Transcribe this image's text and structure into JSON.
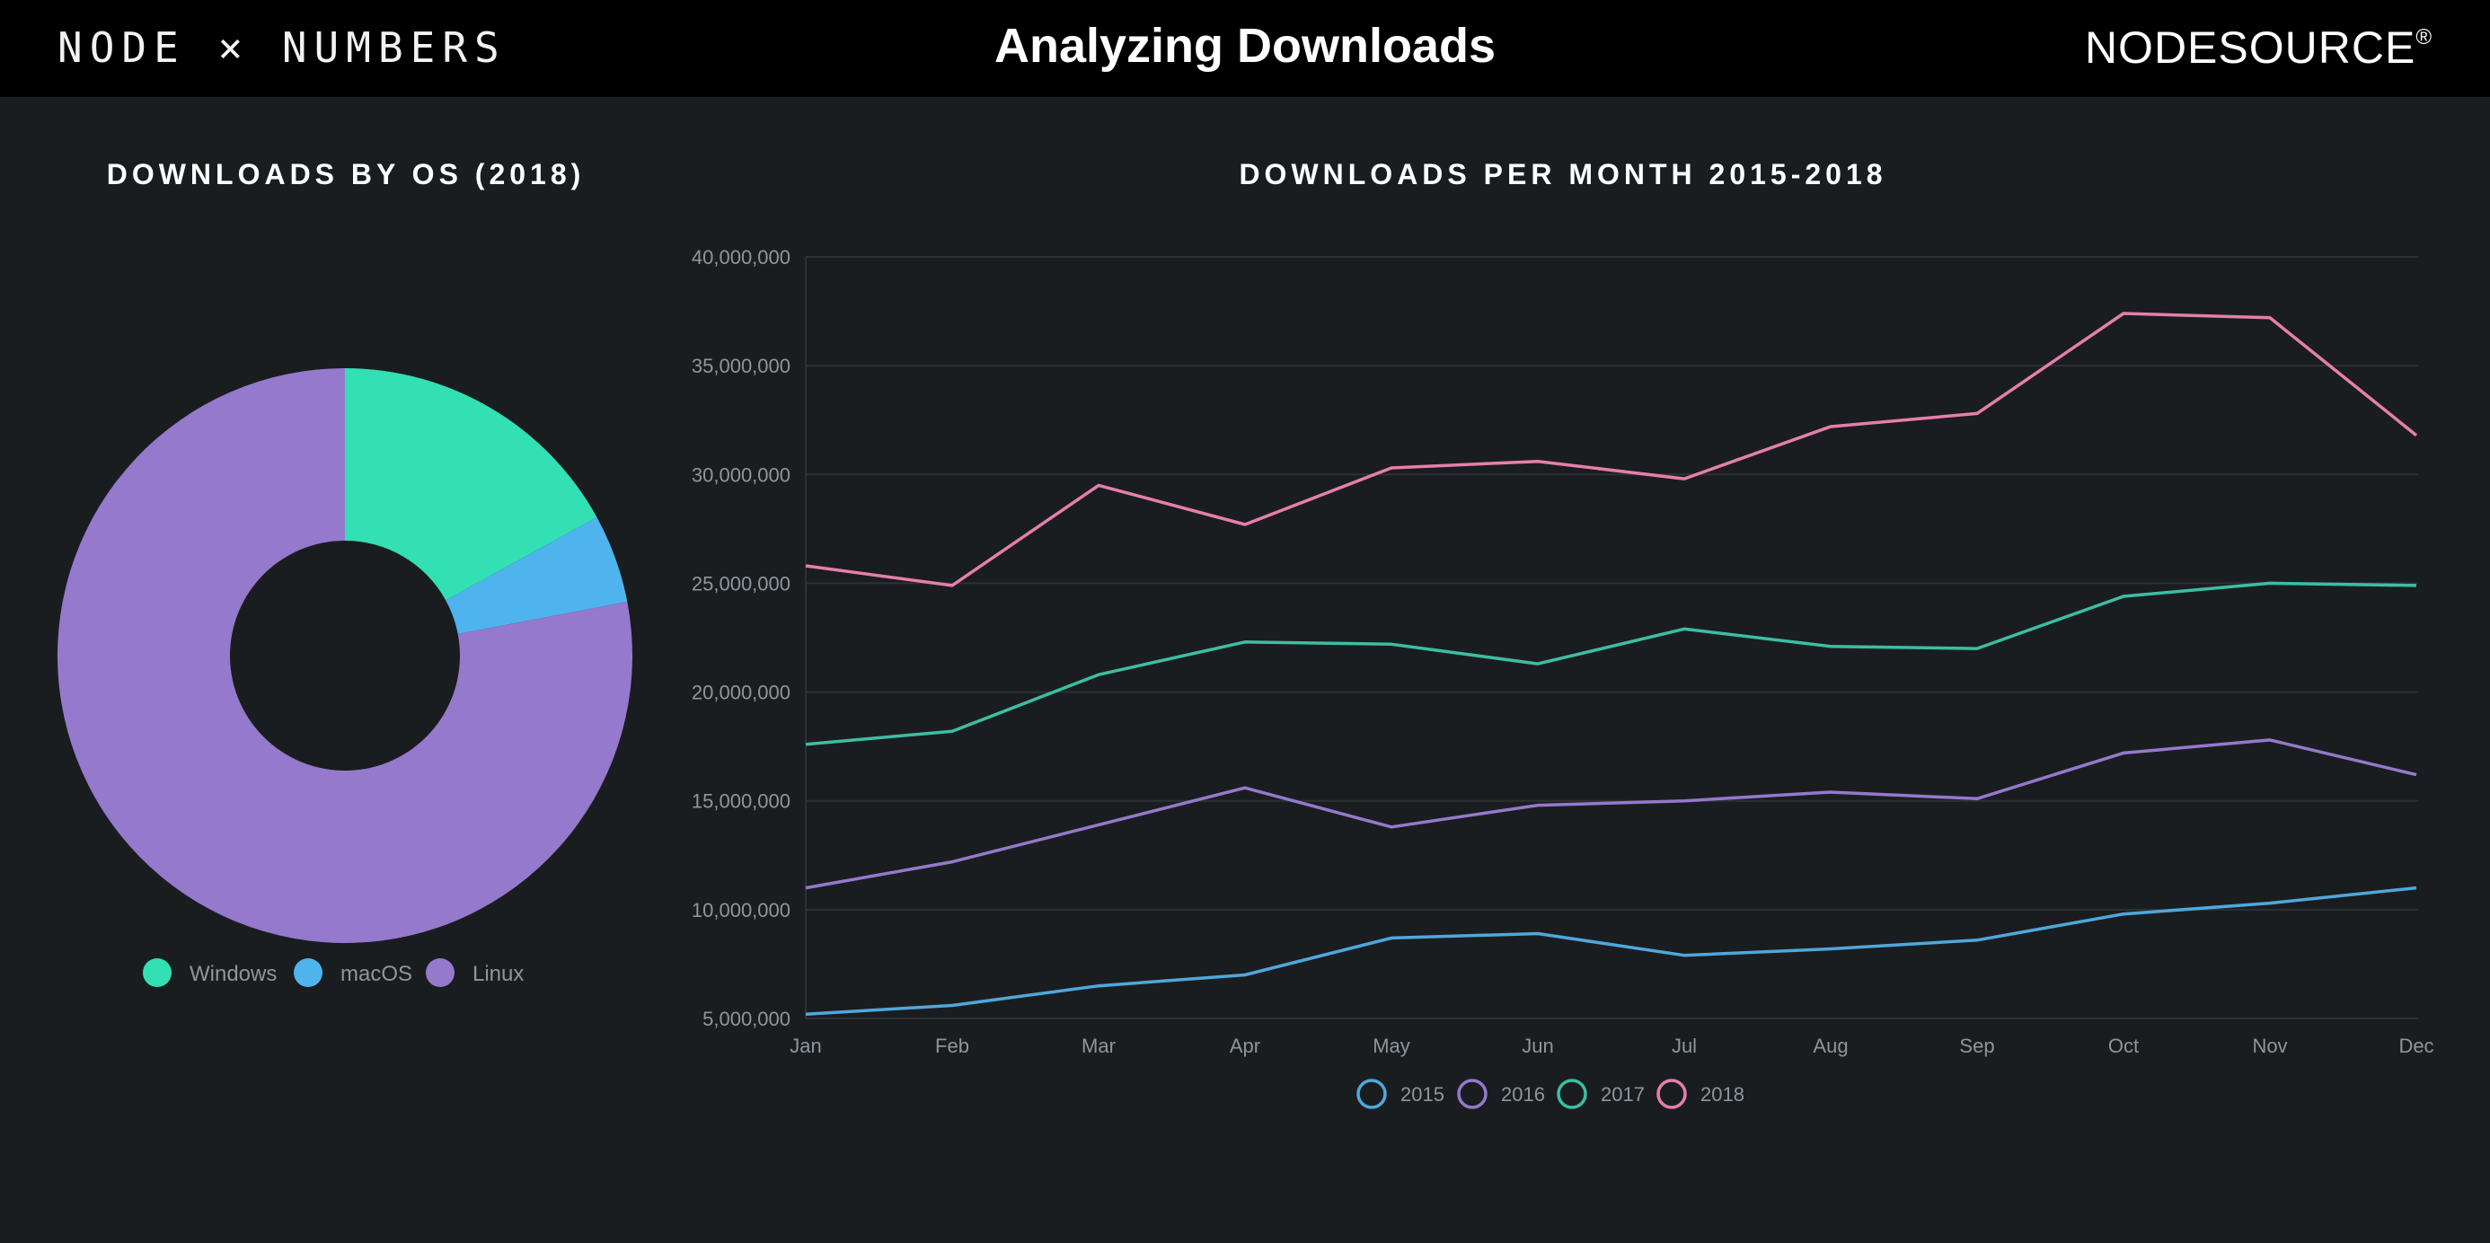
{
  "header": {
    "brand_left": "NODE × NUMBERS",
    "title": "Analyzing Downloads",
    "brand_right": "NODESOURCE",
    "brand_right_mark": "®"
  },
  "colors": {
    "background": "#1a1d1f",
    "header": "#000000",
    "windows": "#33e0b3",
    "macos": "#4fb3ee",
    "linux": "#9479cc",
    "s2015": "#4fa8dc",
    "s2016": "#9479cc",
    "s2017": "#3dbea3",
    "s2018": "#e57fab"
  },
  "chart_data": [
    {
      "type": "pie",
      "title": "DOWNLOADS BY OS (2018)",
      "categories": [
        "Windows",
        "macOS",
        "Linux"
      ],
      "values": [
        17,
        5,
        78
      ],
      "legend": [
        "Windows",
        "macOS",
        "Linux"
      ],
      "legend_position": "bottom"
    },
    {
      "type": "line",
      "title": "DOWNLOADS PER MONTH 2015-2018",
      "x": [
        "Jan",
        "Feb",
        "Mar",
        "Apr",
        "May",
        "Jun",
        "Jul",
        "Aug",
        "Sep",
        "Oct",
        "Nov",
        "Dec"
      ],
      "ylim": [
        5000000,
        40000000
      ],
      "yticks": [
        5000000,
        10000000,
        15000000,
        20000000,
        25000000,
        30000000,
        35000000,
        40000000
      ],
      "ytick_labels": [
        "5,000,000",
        "10,000,000",
        "15,000,000",
        "20,000,000",
        "25,000,000",
        "30,000,000",
        "35,000,000",
        "40,000,000"
      ],
      "grid": true,
      "legend_position": "bottom",
      "series": [
        {
          "name": "2015",
          "values": [
            5200000,
            5600000,
            6500000,
            7000000,
            8700000,
            8900000,
            7900000,
            8200000,
            8600000,
            9800000,
            10300000,
            11000000
          ]
        },
        {
          "name": "2016",
          "values": [
            11000000,
            12200000,
            13900000,
            15600000,
            13800000,
            14800000,
            15000000,
            15400000,
            15100000,
            17200000,
            17800000,
            16200000
          ]
        },
        {
          "name": "2017",
          "values": [
            17600000,
            18200000,
            20800000,
            22300000,
            22200000,
            21300000,
            22900000,
            22100000,
            22000000,
            24400000,
            25000000,
            24900000
          ]
        },
        {
          "name": "2018",
          "values": [
            25800000,
            24900000,
            29500000,
            27700000,
            30300000,
            30600000,
            29800000,
            32200000,
            32800000,
            37400000,
            37200000,
            31800000
          ]
        }
      ]
    }
  ]
}
